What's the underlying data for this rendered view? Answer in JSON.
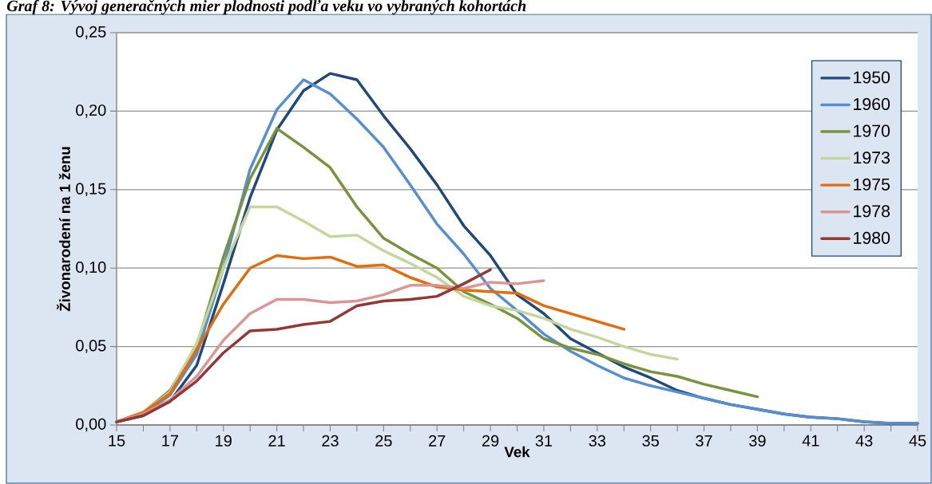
{
  "chart_data": {
    "type": "line",
    "title": "Graf 8: Vývoj generačných mier plodnosti podľa veku vo vybraných kohortách",
    "xlabel": "Vek",
    "ylabel": "Živonarodení na 1 ženu",
    "xlim": [
      15,
      45
    ],
    "xticks": [
      15,
      17,
      19,
      21,
      23,
      25,
      27,
      29,
      31,
      33,
      35,
      37,
      39,
      41,
      43,
      45
    ],
    "ylim": [
      0,
      0.25
    ],
    "yticks": [
      {
        "value": 0,
        "label": "0,00"
      },
      {
        "value": 0.05,
        "label": "0,05"
      },
      {
        "value": 0.1,
        "label": "0,10"
      },
      {
        "value": 0.15,
        "label": "0,15"
      },
      {
        "value": 0.2,
        "label": "0,20"
      },
      {
        "value": 0.25,
        "label": "0,25"
      }
    ],
    "grid": "y",
    "legend": "top right",
    "marker": "none",
    "line_style": "solid",
    "x": [
      15,
      16,
      17,
      18,
      19,
      20,
      21,
      22,
      23,
      24,
      25,
      26,
      27,
      28,
      29,
      30,
      31,
      32,
      33,
      34,
      35,
      36,
      37,
      38,
      39,
      40,
      41,
      42,
      43,
      44,
      45
    ],
    "series": [
      {
        "name": "1950",
        "color": "#1f497d",
        "values": [
          0.002,
          0.006,
          0.015,
          0.038,
          0.09,
          0.145,
          0.188,
          0.213,
          0.224,
          0.22,
          0.197,
          0.176,
          0.153,
          0.127,
          0.108,
          0.083,
          0.071,
          0.055,
          0.046,
          0.037,
          0.03,
          0.022,
          0.017,
          0.013,
          0.01,
          0.007,
          0.005,
          0.004,
          0.002,
          0.001,
          0.001
        ]
      },
      {
        "name": "1960",
        "color": "#558ed5",
        "values": [
          0.002,
          0.007,
          0.019,
          0.045,
          0.1,
          0.163,
          0.201,
          0.22,
          0.211,
          0.195,
          0.177,
          0.153,
          0.128,
          0.109,
          0.087,
          0.073,
          0.058,
          0.047,
          0.038,
          0.03,
          0.025,
          0.021,
          0.017,
          0.013,
          0.01,
          0.007,
          0.005,
          0.004,
          0.002,
          0.001,
          0.001
        ]
      },
      {
        "name": "1970",
        "color": "#77933c",
        "values": [
          0.002,
          0.008,
          0.022,
          0.05,
          0.107,
          0.157,
          0.189,
          0.177,
          0.164,
          0.139,
          0.119,
          0.109,
          0.1,
          0.085,
          0.077,
          0.068,
          0.055,
          0.049,
          0.045,
          0.039,
          0.034,
          0.031,
          0.026,
          0.022,
          0.018,
          null,
          null,
          null,
          null,
          null,
          null
        ]
      },
      {
        "name": "1973",
        "color": "#c3d69b",
        "values": [
          0.002,
          0.008,
          0.021,
          0.052,
          0.1,
          0.139,
          0.139,
          0.13,
          0.12,
          0.121,
          0.111,
          0.103,
          0.094,
          0.082,
          0.076,
          0.073,
          0.068,
          0.061,
          0.056,
          0.05,
          0.045,
          0.042,
          null,
          null,
          null,
          null,
          null,
          null,
          null,
          null,
          null
        ]
      },
      {
        "name": "1975",
        "color": "#e46c0a",
        "values": [
          0.002,
          0.008,
          0.02,
          0.048,
          0.077,
          0.1,
          0.108,
          0.106,
          0.107,
          0.101,
          0.102,
          0.094,
          0.088,
          0.086,
          0.085,
          0.084,
          0.076,
          0.071,
          0.066,
          0.061,
          null,
          null,
          null,
          null,
          null,
          null,
          null,
          null,
          null,
          null,
          null
        ]
      },
      {
        "name": "1978",
        "color": "#d99694",
        "values": [
          0.002,
          0.007,
          0.016,
          0.031,
          0.054,
          0.071,
          0.08,
          0.08,
          0.078,
          0.079,
          0.083,
          0.089,
          0.089,
          0.087,
          0.091,
          0.09,
          0.092,
          null,
          null,
          null,
          null,
          null,
          null,
          null,
          null,
          null,
          null,
          null,
          null,
          null,
          null
        ]
      },
      {
        "name": "1980",
        "color": "#953735",
        "values": [
          0.002,
          0.006,
          0.015,
          0.028,
          0.046,
          0.06,
          0.061,
          0.064,
          0.066,
          0.076,
          0.079,
          0.08,
          0.082,
          0.09,
          0.099,
          null,
          null,
          null,
          null,
          null,
          null,
          null,
          null,
          null,
          null,
          null,
          null,
          null,
          null,
          null,
          null
        ]
      }
    ]
  }
}
